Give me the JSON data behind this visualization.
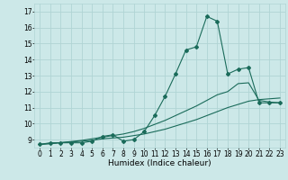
{
  "title": "",
  "xlabel": "Humidex (Indice chaleur)",
  "ylabel": "",
  "bg_color": "#cce8e8",
  "grid_color": "#b0d4d4",
  "line_color": "#1a6b5a",
  "xlim": [
    -0.5,
    23.5
  ],
  "ylim": [
    8.5,
    17.5
  ],
  "xticks": [
    0,
    1,
    2,
    3,
    4,
    5,
    6,
    7,
    8,
    9,
    10,
    11,
    12,
    13,
    14,
    15,
    16,
    17,
    18,
    19,
    20,
    21,
    22,
    23
  ],
  "yticks": [
    9,
    10,
    11,
    12,
    13,
    14,
    15,
    16,
    17
  ],
  "series": [
    {
      "x": [
        0,
        1,
        2,
        3,
        4,
        5,
        6,
        7,
        8,
        9,
        10,
        11,
        12,
        13,
        14,
        15,
        16,
        17,
        18,
        19,
        20,
        21,
        22,
        23
      ],
      "y": [
        8.7,
        8.8,
        8.8,
        8.8,
        8.8,
        8.9,
        9.2,
        9.3,
        8.9,
        9.0,
        9.5,
        10.5,
        11.7,
        13.1,
        14.6,
        14.8,
        16.7,
        16.4,
        13.1,
        13.4,
        13.5,
        11.3,
        11.3,
        11.3
      ],
      "marker": "D",
      "markersize": 2.0,
      "linewidth": 0.8,
      "has_marker": true
    },
    {
      "x": [
        0,
        1,
        2,
        3,
        4,
        5,
        6,
        7,
        8,
        9,
        10,
        11,
        12,
        13,
        14,
        15,
        16,
        17,
        18,
        19,
        20,
        21,
        22,
        23
      ],
      "y": [
        8.7,
        8.75,
        8.8,
        8.85,
        8.9,
        8.95,
        9.05,
        9.1,
        9.15,
        9.25,
        9.35,
        9.5,
        9.65,
        9.85,
        10.05,
        10.25,
        10.5,
        10.75,
        11.0,
        11.2,
        11.4,
        11.5,
        11.55,
        11.6
      ],
      "marker": null,
      "markersize": 0,
      "linewidth": 0.8,
      "has_marker": false
    },
    {
      "x": [
        0,
        1,
        2,
        3,
        4,
        5,
        6,
        7,
        8,
        9,
        10,
        11,
        12,
        13,
        14,
        15,
        16,
        17,
        18,
        19,
        20,
        21,
        22,
        23
      ],
      "y": [
        8.7,
        8.75,
        8.82,
        8.88,
        8.95,
        9.05,
        9.15,
        9.25,
        9.35,
        9.5,
        9.7,
        9.95,
        10.2,
        10.5,
        10.8,
        11.1,
        11.45,
        11.8,
        12.0,
        12.5,
        12.55,
        11.45,
        11.35,
        11.3
      ],
      "marker": null,
      "markersize": 0,
      "linewidth": 0.8,
      "has_marker": false
    }
  ],
  "tick_fontsize": 5.5,
  "xlabel_fontsize": 6.5
}
